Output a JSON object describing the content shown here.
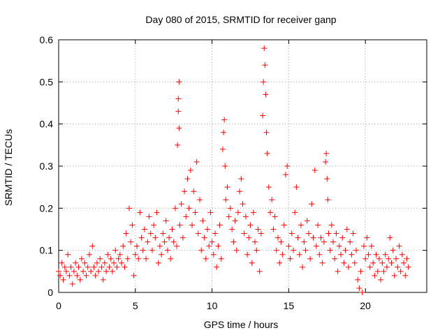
{
  "chart_data": {
    "type": "scatter",
    "title": "Day 080 of 2015, SRMTID for receiver ganp",
    "xlabel": "GPS time / hours",
    "ylabel": "SRMTID / TECUs",
    "xlim": [
      0,
      24
    ],
    "ylim": [
      0,
      0.6
    ],
    "xticks": [
      0,
      5,
      10,
      15,
      20
    ],
    "xtick_labels": [
      "0",
      "5",
      "10",
      "15",
      "20"
    ],
    "yticks": [
      0,
      0.1,
      0.2,
      0.3,
      0.4,
      0.5,
      0.6
    ],
    "ytick_labels": [
      "0",
      "0.1",
      "0.2",
      "0.3",
      "0.4",
      "0.5",
      "0.6"
    ],
    "grid": true,
    "marker": "+",
    "color": "#ff0000",
    "series": [
      {
        "name": "SRMTID",
        "points": [
          [
            0.0,
            0.05
          ],
          [
            0.1,
            0.04
          ],
          [
            0.2,
            0.07
          ],
          [
            0.3,
            0.03
          ],
          [
            0.4,
            0.06
          ],
          [
            0.5,
            0.05
          ],
          [
            0.6,
            0.09
          ],
          [
            0.7,
            0.04
          ],
          [
            0.8,
            0.06
          ],
          [
            0.9,
            0.02
          ],
          [
            1.0,
            0.05
          ],
          [
            1.1,
            0.07
          ],
          [
            1.2,
            0.04
          ],
          [
            1.3,
            0.06
          ],
          [
            1.4,
            0.03
          ],
          [
            1.5,
            0.08
          ],
          [
            1.6,
            0.05
          ],
          [
            1.7,
            0.07
          ],
          [
            1.8,
            0.04
          ],
          [
            1.9,
            0.06
          ],
          [
            2.0,
            0.09
          ],
          [
            2.1,
            0.05
          ],
          [
            2.2,
            0.11
          ],
          [
            2.3,
            0.06
          ],
          [
            2.4,
            0.04
          ],
          [
            2.5,
            0.07
          ],
          [
            2.6,
            0.05
          ],
          [
            2.7,
            0.08
          ],
          [
            2.8,
            0.06
          ],
          [
            2.9,
            0.03
          ],
          [
            3.0,
            0.07
          ],
          [
            3.1,
            0.05
          ],
          [
            3.2,
            0.09
          ],
          [
            3.3,
            0.06
          ],
          [
            3.4,
            0.08
          ],
          [
            3.5,
            0.05
          ],
          [
            3.6,
            0.07
          ],
          [
            3.7,
            0.1
          ],
          [
            3.8,
            0.06
          ],
          [
            3.9,
            0.08
          ],
          [
            4.0,
            0.09
          ],
          [
            4.1,
            0.07
          ],
          [
            4.2,
            0.11
          ],
          [
            4.3,
            0.06
          ],
          [
            4.4,
            0.14
          ],
          [
            4.5,
            0.08
          ],
          [
            4.6,
            0.2
          ],
          [
            4.7,
            0.12
          ],
          [
            4.8,
            0.16
          ],
          [
            4.9,
            0.04
          ],
          [
            5.0,
            0.09
          ],
          [
            5.1,
            0.11
          ],
          [
            5.2,
            0.08
          ],
          [
            5.3,
            0.19
          ],
          [
            5.4,
            0.13
          ],
          [
            5.5,
            0.1
          ],
          [
            5.6,
            0.15
          ],
          [
            5.7,
            0.08
          ],
          [
            5.8,
            0.12
          ],
          [
            5.9,
            0.18
          ],
          [
            6.0,
            0.14
          ],
          [
            6.1,
            0.1
          ],
          [
            6.2,
            0.16
          ],
          [
            6.3,
            0.13
          ],
          [
            6.4,
            0.19
          ],
          [
            6.5,
            0.07
          ],
          [
            6.6,
            0.11
          ],
          [
            6.7,
            0.09
          ],
          [
            6.8,
            0.14
          ],
          [
            6.9,
            0.12
          ],
          [
            7.0,
            0.17
          ],
          [
            7.1,
            0.1
          ],
          [
            7.2,
            0.13
          ],
          [
            7.3,
            0.08
          ],
          [
            7.4,
            0.15
          ],
          [
            7.5,
            0.12
          ],
          [
            7.6,
            0.2
          ],
          [
            7.7,
            0.11
          ],
          [
            7.75,
            0.35
          ],
          [
            7.8,
            0.43
          ],
          [
            7.8,
            0.46
          ],
          [
            7.85,
            0.5
          ],
          [
            7.85,
            0.39
          ],
          [
            7.9,
            0.16
          ],
          [
            8.0,
            0.21
          ],
          [
            8.1,
            0.13
          ],
          [
            8.2,
            0.24
          ],
          [
            8.3,
            0.18
          ],
          [
            8.4,
            0.27
          ],
          [
            8.5,
            0.2
          ],
          [
            8.6,
            0.29
          ],
          [
            8.7,
            0.16
          ],
          [
            8.8,
            0.24
          ],
          [
            8.9,
            0.19
          ],
          [
            9.0,
            0.31
          ],
          [
            9.1,
            0.14
          ],
          [
            9.2,
            0.22
          ],
          [
            9.3,
            0.1
          ],
          [
            9.4,
            0.17
          ],
          [
            9.5,
            0.13
          ],
          [
            9.6,
            0.08
          ],
          [
            9.7,
            0.15
          ],
          [
            9.8,
            0.11
          ],
          [
            9.9,
            0.19
          ],
          [
            10.0,
            0.12
          ],
          [
            10.1,
            0.09
          ],
          [
            10.2,
            0.14
          ],
          [
            10.3,
            0.06
          ],
          [
            10.4,
            0.11
          ],
          [
            10.5,
            0.16
          ],
          [
            10.6,
            0.08
          ],
          [
            10.7,
            0.34
          ],
          [
            10.75,
            0.38
          ],
          [
            10.8,
            0.41
          ],
          [
            10.85,
            0.3
          ],
          [
            10.9,
            0.22
          ],
          [
            11.0,
            0.25
          ],
          [
            11.1,
            0.18
          ],
          [
            11.2,
            0.2
          ],
          [
            11.3,
            0.15
          ],
          [
            11.4,
            0.12
          ],
          [
            11.5,
            0.17
          ],
          [
            11.6,
            0.1
          ],
          [
            11.7,
            0.19
          ],
          [
            11.8,
            0.24
          ],
          [
            11.9,
            0.27
          ],
          [
            12.0,
            0.21
          ],
          [
            12.1,
            0.14
          ],
          [
            12.2,
            0.18
          ],
          [
            12.3,
            0.09
          ],
          [
            12.4,
            0.13
          ],
          [
            12.5,
            0.16
          ],
          [
            12.6,
            0.07
          ],
          [
            12.7,
            0.19
          ],
          [
            12.8,
            0.12
          ],
          [
            12.9,
            0.1
          ],
          [
            13.0,
            0.15
          ],
          [
            13.1,
            0.05
          ],
          [
            13.2,
            0.14
          ],
          [
            13.3,
            0.42
          ],
          [
            13.35,
            0.5
          ],
          [
            13.4,
            0.58
          ],
          [
            13.45,
            0.54
          ],
          [
            13.5,
            0.47
          ],
          [
            13.55,
            0.38
          ],
          [
            13.6,
            0.33
          ],
          [
            13.7,
            0.25
          ],
          [
            13.8,
            0.19
          ],
          [
            13.9,
            0.22
          ],
          [
            14.0,
            0.15
          ],
          [
            14.1,
            0.18
          ],
          [
            14.2,
            0.1
          ],
          [
            14.3,
            0.13
          ],
          [
            14.4,
            0.07
          ],
          [
            14.5,
            0.12
          ],
          [
            14.6,
            0.09
          ],
          [
            14.7,
            0.16
          ],
          [
            14.8,
            0.28
          ],
          [
            14.9,
            0.3
          ],
          [
            15.0,
            0.11
          ],
          [
            15.1,
            0.08
          ],
          [
            15.2,
            0.14
          ],
          [
            15.3,
            0.1
          ],
          [
            15.4,
            0.19
          ],
          [
            15.5,
            0.25
          ],
          [
            15.6,
            0.13
          ],
          [
            15.7,
            0.09
          ],
          [
            15.8,
            0.16
          ],
          [
            15.9,
            0.06
          ],
          [
            16.0,
            0.12
          ],
          [
            16.1,
            0.1
          ],
          [
            16.2,
            0.17
          ],
          [
            16.3,
            0.14
          ],
          [
            16.4,
            0.08
          ],
          [
            16.5,
            0.21
          ],
          [
            16.6,
            0.13
          ],
          [
            16.7,
            0.29
          ],
          [
            16.8,
            0.11
          ],
          [
            16.9,
            0.16
          ],
          [
            17.0,
            0.09
          ],
          [
            17.1,
            0.13
          ],
          [
            17.2,
            0.07
          ],
          [
            17.3,
            0.12
          ],
          [
            17.4,
            0.31
          ],
          [
            17.45,
            0.33
          ],
          [
            17.5,
            0.27
          ],
          [
            17.55,
            0.22
          ],
          [
            17.6,
            0.14
          ],
          [
            17.7,
            0.1
          ],
          [
            17.8,
            0.16
          ],
          [
            17.9,
            0.12
          ],
          [
            18.0,
            0.08
          ],
          [
            18.1,
            0.14
          ],
          [
            18.2,
            0.05
          ],
          [
            18.3,
            0.11
          ],
          [
            18.4,
            0.09
          ],
          [
            18.5,
            0.13
          ],
          [
            18.6,
            0.07
          ],
          [
            18.7,
            0.1
          ],
          [
            18.8,
            0.15
          ],
          [
            18.9,
            0.06
          ],
          [
            19.0,
            0.12
          ],
          [
            19.1,
            0.09
          ],
          [
            19.2,
            0.14
          ],
          [
            19.3,
            0.07
          ],
          [
            19.4,
            0.1
          ],
          [
            19.5,
            0.03
          ],
          [
            19.6,
            0.01
          ],
          [
            19.7,
            0.05
          ],
          [
            19.8,
            0.0
          ],
          [
            19.9,
            0.11
          ],
          [
            20.0,
            0.08
          ],
          [
            20.1,
            0.13
          ],
          [
            20.2,
            0.09
          ],
          [
            20.3,
            0.06
          ],
          [
            20.4,
            0.11
          ],
          [
            20.5,
            0.07
          ],
          [
            20.6,
            0.04
          ],
          [
            20.7,
            0.09
          ],
          [
            20.8,
            0.05
          ],
          [
            20.9,
            0.08
          ],
          [
            21.0,
            0.03
          ],
          [
            21.1,
            0.07
          ],
          [
            21.2,
            0.05
          ],
          [
            21.3,
            0.09
          ],
          [
            21.4,
            0.06
          ],
          [
            21.5,
            0.08
          ],
          [
            21.6,
            0.13
          ],
          [
            21.7,
            0.07
          ],
          [
            21.8,
            0.1
          ],
          [
            21.9,
            0.04
          ],
          [
            22.0,
            0.08
          ],
          [
            22.1,
            0.06
          ],
          [
            22.2,
            0.11
          ],
          [
            22.3,
            0.05
          ],
          [
            22.4,
            0.09
          ],
          [
            22.5,
            0.07
          ],
          [
            22.6,
            0.04
          ],
          [
            22.7,
            0.08
          ],
          [
            22.8,
            0.06
          ]
        ]
      }
    ]
  }
}
